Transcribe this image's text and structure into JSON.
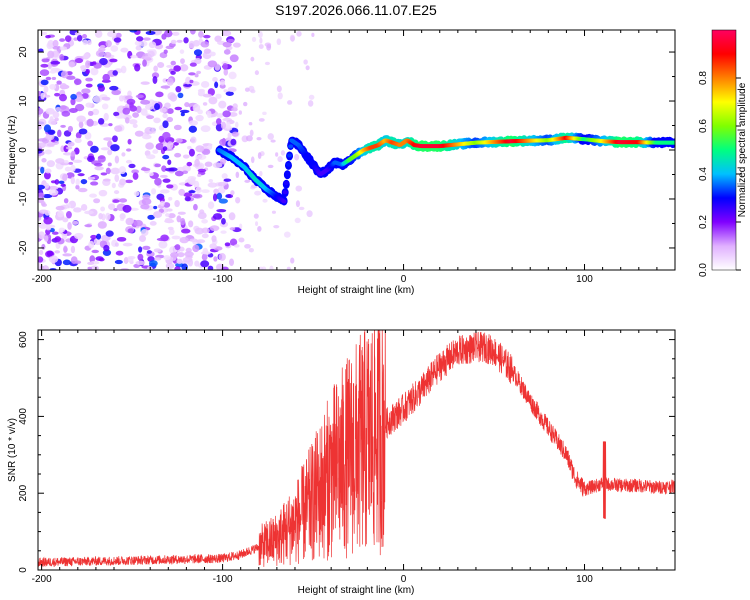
{
  "title": "S197.2026.066.11.07.E25",
  "chart_data": [
    {
      "type": "heatmap",
      "name": "spectrogram",
      "xlabel": "Height of straight line (km)",
      "ylabel": "Frequency (Hz)",
      "xlim": [
        -202,
        150
      ],
      "ylim": [
        -24.5,
        24.5
      ],
      "x_ticks": [
        -200,
        -100,
        0,
        100
      ],
      "y_ticks": [
        -20,
        -10,
        0,
        10,
        20
      ],
      "colorbar": {
        "label": "Normalized spectral amplitude",
        "range": [
          0,
          1
        ],
        "ticks": [
          "0.0",
          "0.2",
          "0.4",
          "0.6",
          "0.8"
        ],
        "colors": [
          "#ffffff",
          "#e0b0ff",
          "#8000ff",
          "#0000ff",
          "#00c0ff",
          "#00ff80",
          "#80ff00",
          "#ffff00",
          "#ff8000",
          "#ff0000",
          "#ff0060"
        ]
      },
      "signal_track": {
        "description": "spectral ridge frequency vs height",
        "x": [
          -102,
          -95,
          -88,
          -82,
          -76,
          -70,
          -66,
          -62,
          -58,
          -54,
          -50,
          -46,
          -42,
          -38,
          -34,
          -30,
          -26,
          -22,
          -18,
          -14,
          -10,
          -6,
          -2,
          2,
          6,
          10,
          20,
          40,
          60,
          80,
          90,
          100,
          110,
          120,
          130,
          140,
          150
        ],
        "y": [
          0.0,
          -1.5,
          -3.5,
          -6.0,
          -8.0,
          -9.5,
          -10.5,
          2.0,
          1.0,
          -1.0,
          -3.0,
          -5.0,
          -4.0,
          -2.5,
          -3.0,
          -2.0,
          -1.0,
          0.0,
          0.5,
          1.0,
          2.0,
          1.5,
          1.0,
          2.0,
          1.0,
          0.8,
          0.8,
          1.5,
          1.8,
          2.0,
          2.5,
          2.2,
          1.8,
          1.6,
          1.6,
          1.5,
          1.5
        ],
        "amplitude": [
          0.35,
          0.4,
          0.4,
          0.45,
          0.4,
          0.3,
          0.25,
          0.35,
          0.35,
          0.3,
          0.3,
          0.25,
          0.25,
          0.35,
          0.35,
          0.55,
          0.6,
          0.75,
          0.85,
          0.85,
          0.75,
          0.85,
          0.8,
          0.8,
          0.9,
          0.95,
          0.95,
          0.6,
          0.95,
          0.6,
          0.9,
          0.5,
          0.7,
          0.95,
          0.9,
          0.5,
          0.5
        ]
      }
    },
    {
      "type": "line",
      "name": "snr",
      "xlabel": "Height of straight line (km)",
      "ylabel": "SNR (10 * v/v)",
      "xlim": [
        -202,
        150
      ],
      "ylim": [
        0,
        625
      ],
      "x_ticks": [
        -200,
        -100,
        0,
        100
      ],
      "y_ticks": [
        0,
        200,
        400,
        600
      ],
      "series": [
        {
          "name": "SNR",
          "color": "#ee3333",
          "x": [
            -202,
            -180,
            -160,
            -140,
            -120,
            -100,
            -90,
            -80,
            -70,
            -60,
            -50,
            -40,
            -30,
            -20,
            -10,
            0,
            10,
            20,
            30,
            40,
            45,
            50,
            60,
            70,
            80,
            90,
            95,
            100,
            110,
            120,
            130,
            140,
            150
          ],
          "y": [
            20,
            22,
            24,
            26,
            28,
            30,
            40,
            60,
            80,
            120,
            180,
            250,
            300,
            340,
            380,
            420,
            470,
            530,
            570,
            580,
            580,
            570,
            520,
            440,
            370,
            300,
            240,
            210,
            225,
            220,
            220,
            215,
            218
          ]
        }
      ]
    }
  ]
}
